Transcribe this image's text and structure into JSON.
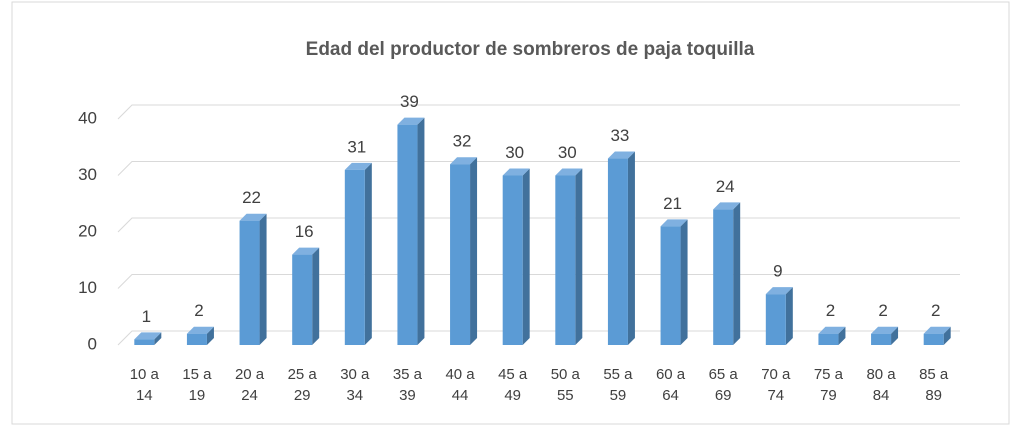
{
  "chart_data": {
    "type": "bar",
    "title": "Edad del productor de sombreros de paja toquilla",
    "categories": [
      "10 a 14",
      "15 a 19",
      "20 a 24",
      "25 a 29",
      "30 a 34",
      "35 a 39",
      "40 a 44",
      "45 a 49",
      "50 a 55",
      "55 a 59",
      "60 a 64",
      "65 a 69",
      "70 a 74",
      "75 a 79",
      "80 a 84",
      "85 a 89"
    ],
    "values": [
      1,
      2,
      22,
      16,
      31,
      39,
      32,
      30,
      30,
      33,
      21,
      24,
      9,
      2,
      2,
      2
    ],
    "color": "#5b9bd5",
    "ylim": [
      0,
      40
    ],
    "yticks": [
      0,
      10,
      20,
      30,
      40
    ],
    "grid": true
  }
}
